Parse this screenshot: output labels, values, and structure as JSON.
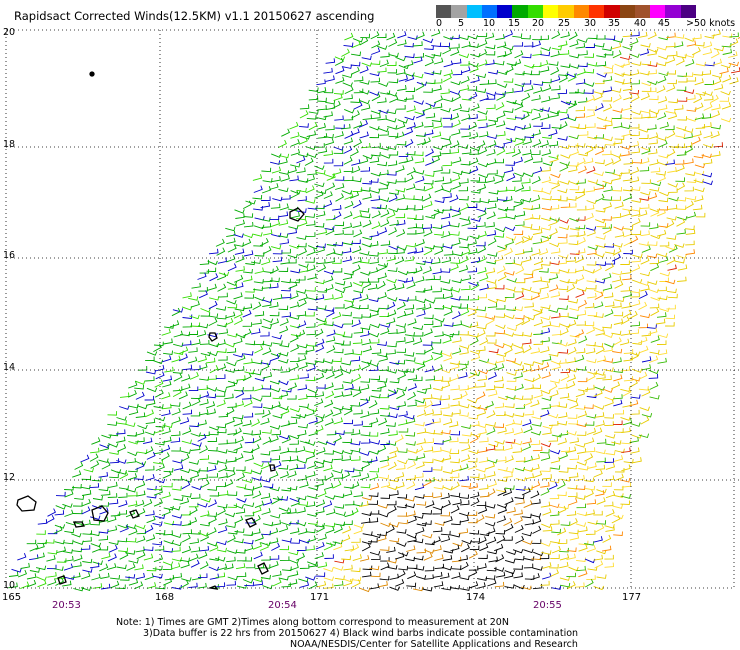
{
  "title": "Rapidsact Corrected Winds(12.5KM) v1.1 20150627 ascending",
  "scale": {
    "colors": [
      "#555555",
      "#a3a3a3",
      "#00bfff",
      "#0070ff",
      "#0000cc",
      "#00aa00",
      "#33dd00",
      "#ffff00",
      "#ffcc00",
      "#ff8800",
      "#ff3300",
      "#d00000",
      "#8b4513",
      "#a0522d",
      "#ff00ff",
      "#9400d3",
      "#4b0082"
    ],
    "tick_labels": [
      "0",
      "5",
      "10",
      "15",
      "20",
      "25",
      "30",
      "35",
      "40",
      "45",
      ">50 knots"
    ]
  },
  "map": {
    "lat_labels": [
      "20",
      "18",
      "16",
      "14",
      "12",
      "10"
    ],
    "lon_labels": [
      "165",
      "168",
      "171",
      "174",
      "177"
    ],
    "time_labels": [
      "20:53",
      "20:54",
      "20:55"
    ]
  },
  "notes": [
    "Note: 1) Times are GMT 2)Times along bottom correspond to measurement at 20N",
    "3)Data buffer is 22 hrs from 20150627 4) Black wind barbs indicate possible contamination",
    "NOAA/NESDIS/Center for Satellite Applications and Research"
  ]
}
